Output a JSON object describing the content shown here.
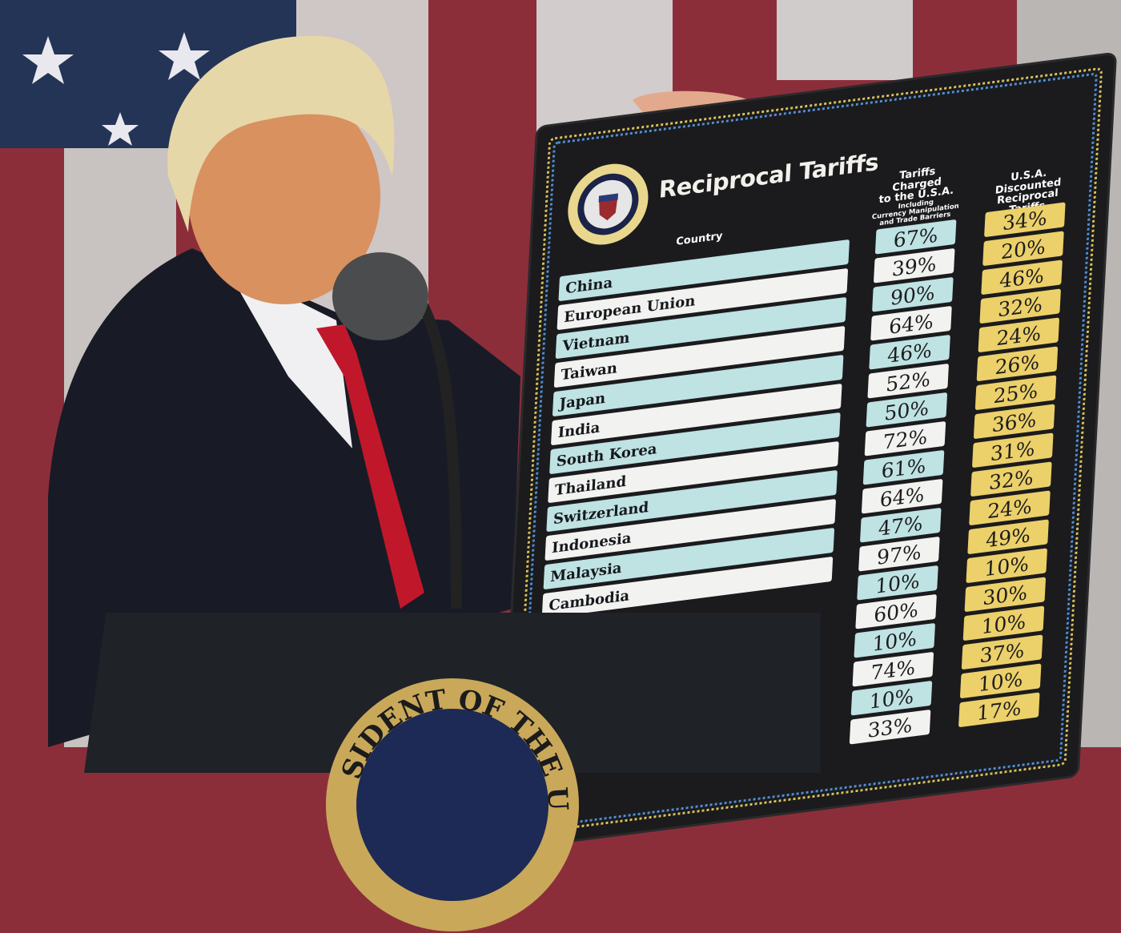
{
  "board": {
    "title": "Reciprocal Tariffs",
    "seal_text": "SEAL OF THE PRESIDENT OF THE UNITED STATES",
    "country_header": "Country",
    "charged_header": {
      "line1": "Tariffs Charged",
      "line2": "to the U.S.A.",
      "line3": "Including",
      "line4": "Currency Manipulation",
      "line5": "and Trade Barriers"
    },
    "discount_header": {
      "line1": "U.S.A. Discounted",
      "line2": "Reciprocal Tariffs"
    },
    "rows": [
      {
        "country": "China",
        "charged": "67%",
        "discounted": "34%"
      },
      {
        "country": "European Union",
        "charged": "39%",
        "discounted": "20%"
      },
      {
        "country": "Vietnam",
        "charged": "90%",
        "discounted": "46%"
      },
      {
        "country": "Taiwan",
        "charged": "64%",
        "discounted": "32%"
      },
      {
        "country": "Japan",
        "charged": "46%",
        "discounted": "24%"
      },
      {
        "country": "India",
        "charged": "52%",
        "discounted": "26%"
      },
      {
        "country": "South Korea",
        "charged": "50%",
        "discounted": "25%"
      },
      {
        "country": "Thailand",
        "charged": "72%",
        "discounted": "36%"
      },
      {
        "country": "Switzerland",
        "charged": "61%",
        "discounted": "31%"
      },
      {
        "country": "Indonesia",
        "charged": "64%",
        "discounted": "32%"
      },
      {
        "country": "Malaysia",
        "charged": "47%",
        "discounted": "24%"
      },
      {
        "country": "Cambodia",
        "charged": "97%",
        "discounted": "49%"
      },
      {
        "country": "",
        "charged": "10%",
        "discounted": "10%"
      },
      {
        "country": "",
        "charged": "60%",
        "discounted": "30%"
      },
      {
        "country": "",
        "charged": "10%",
        "discounted": "10%"
      },
      {
        "country": "",
        "charged": "74%",
        "discounted": "37%"
      },
      {
        "country": "",
        "charged": "10%",
        "discounted": "10%"
      },
      {
        "country": "",
        "charged": "33%",
        "discounted": "17%"
      }
    ],
    "colors": {
      "teal": "#bfe2e3",
      "white": "#f2f2f0",
      "yellow": "#ecd06a",
      "board": "#1b1b1d"
    }
  },
  "podium": {
    "seal_text": "SIDENT OF THE U"
  }
}
